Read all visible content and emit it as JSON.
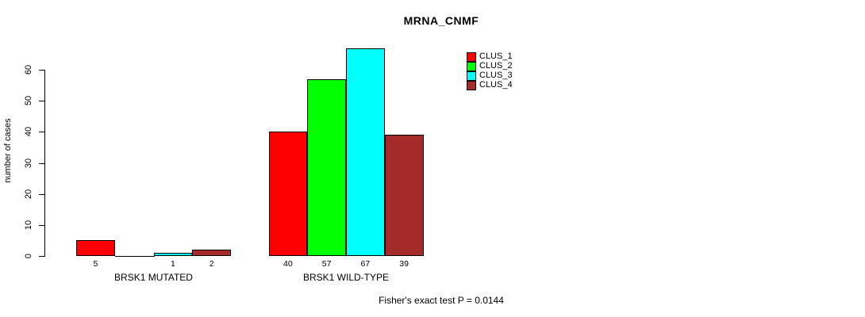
{
  "chart_data": {
    "type": "bar",
    "title": "MRNA_CNMF",
    "ylabel": "number of cases",
    "xlabel": "",
    "categories": [
      "BRSK1 MUTATED",
      "BRSK1 WILD-TYPE"
    ],
    "series": [
      {
        "name": "CLUS_1",
        "color": "#ff0000",
        "values": [
          5,
          40
        ]
      },
      {
        "name": "CLUS_2",
        "color": "#00ff00",
        "values": [
          0,
          57
        ]
      },
      {
        "name": "CLUS_3",
        "color": "#00ffff",
        "values": [
          1,
          67
        ]
      },
      {
        "name": "CLUS_4",
        "color": "#a52a2a",
        "values": [
          2,
          39
        ]
      }
    ],
    "bar_value_labels": [
      [
        5,
        null,
        1,
        2
      ],
      [
        40,
        57,
        67,
        39
      ]
    ],
    "yticks": [
      0,
      10,
      20,
      30,
      40,
      50,
      60
    ],
    "ylim": [
      0,
      60
    ],
    "grid": false,
    "legend_position": "top-right",
    "legend_entries": [
      "CLUS_1",
      "CLUS_2",
      "CLUS_3",
      "CLUS_4"
    ],
    "annotation": "Fisher's exact test P = 0.0144"
  },
  "colors": {
    "clus_1": "#ff0000",
    "clus_2": "#00ff00",
    "clus_3": "#00ffff",
    "clus_4": "#a52a2a",
    "axis": "#000000",
    "background": "#ffffff"
  }
}
